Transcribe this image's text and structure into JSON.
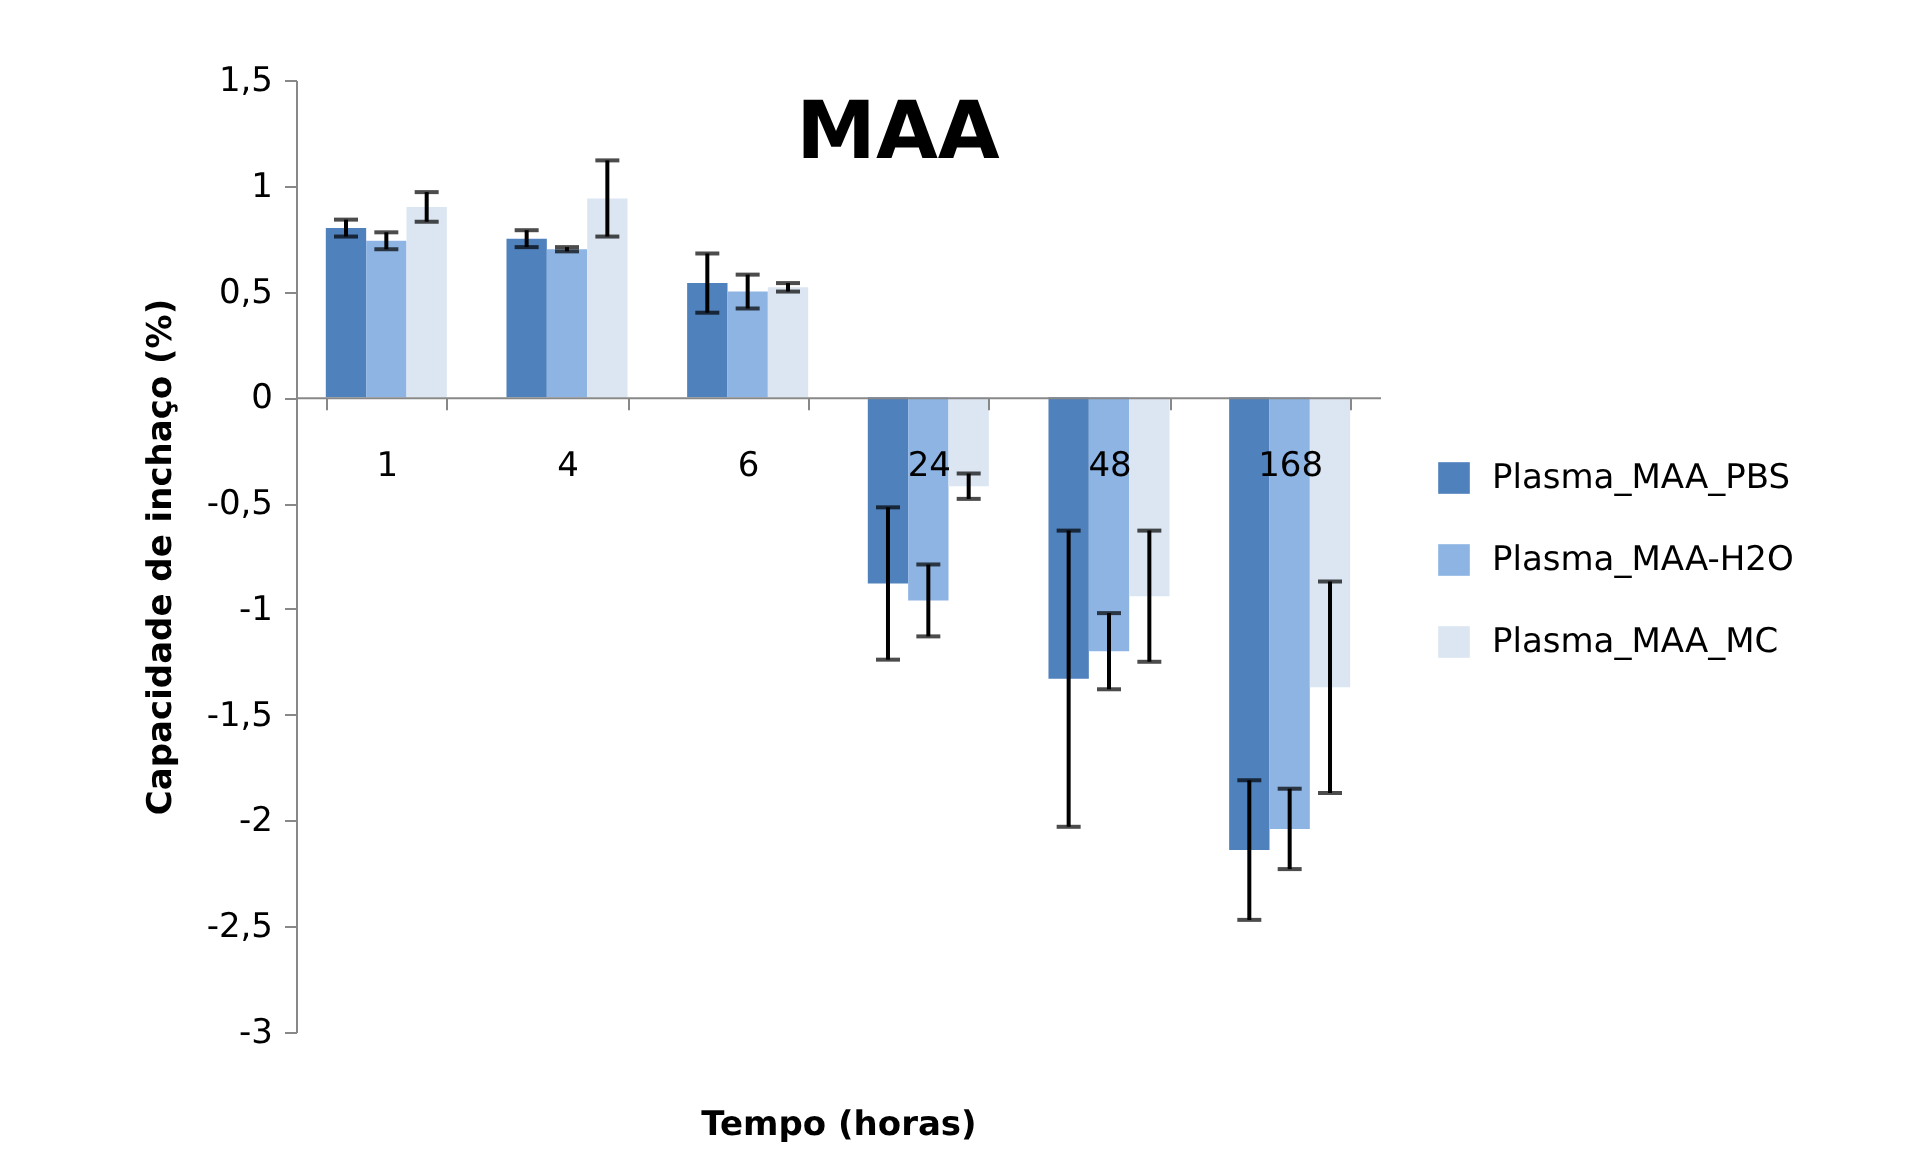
{
  "chart_data": {
    "type": "bar",
    "title": "MAA",
    "xlabel": "Tempo (horas)",
    "ylabel": "Capacidade de inchaço (%)",
    "categories": [
      "1",
      "4",
      "6",
      "24",
      "48",
      "168"
    ],
    "series": [
      {
        "name": "Plasma_MAA_PBS",
        "color": "#4f81bd",
        "values": [
          0.8,
          0.75,
          0.54,
          -0.88,
          -1.33,
          -2.14
        ],
        "errors": [
          0.04,
          0.04,
          0.14,
          0.36,
          0.7,
          0.33
        ]
      },
      {
        "name": "Plasma_MAA-H2O",
        "color": "#8eb4e3",
        "values": [
          0.74,
          0.7,
          0.5,
          -0.96,
          -1.2,
          -2.04
        ],
        "errors": [
          0.04,
          0.01,
          0.08,
          0.17,
          0.18,
          0.19
        ]
      },
      {
        "name": "Plasma_MAA_MC",
        "color": "#dce6f2",
        "values": [
          0.9,
          0.94,
          0.52,
          -0.42,
          -0.94,
          -1.37
        ],
        "errors": [
          0.07,
          0.18,
          0.02,
          0.06,
          0.31,
          0.5
        ]
      }
    ],
    "ylim": [
      -3,
      1.5
    ],
    "yticks": [
      {
        "value": -3,
        "label": "-3"
      },
      {
        "value": -2.5,
        "label": "-2,5"
      },
      {
        "value": -2,
        "label": "-2"
      },
      {
        "value": -1.5,
        "label": "-1,5"
      },
      {
        "value": -1,
        "label": "-1"
      },
      {
        "value": -0.5,
        "label": "-0,5"
      },
      0,
      {
        "value": 0.5,
        "label": "0,5"
      },
      1,
      {
        "value": 1.5,
        "label": "1,5"
      }
    ],
    "grid": false,
    "legend": "right"
  }
}
